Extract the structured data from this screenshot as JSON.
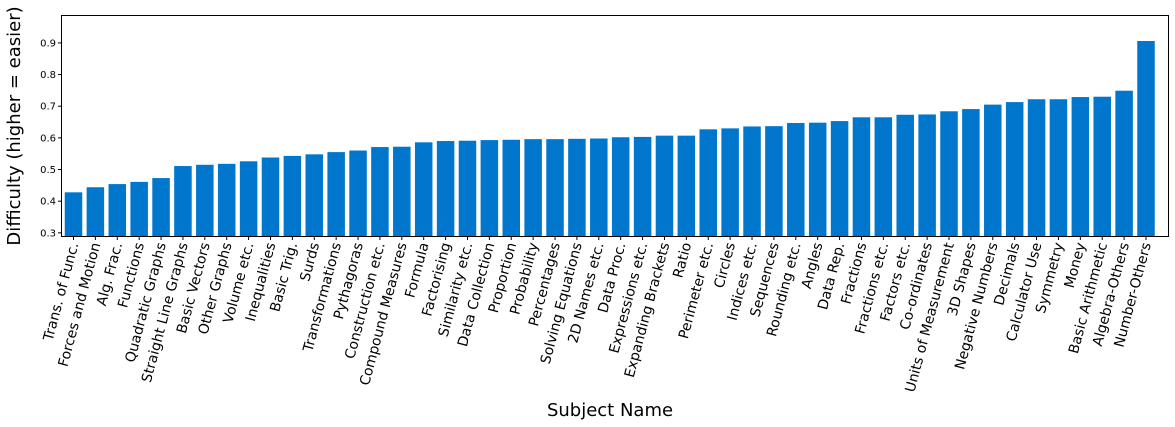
{
  "chart_data": {
    "type": "bar",
    "xlabel": "Subject Name",
    "ylabel": "Difficulty (higher = easier)",
    "ylim": [
      0.29,
      0.985
    ],
    "yticks": [
      "0.3",
      "0.4",
      "0.5",
      "0.6",
      "0.7",
      "0.8",
      "0.9"
    ],
    "grid": false,
    "bar_color": "#0077cc",
    "categories": [
      "Trans. of Func.",
      "Forces and Motion",
      "Alg. Frac.",
      "Functions",
      "Quadratic Graphs",
      "Straight Line Graphs",
      "Basic Vectors",
      "Other Graphs",
      "Volume etc.",
      "Inequalities",
      "Basic Trig.",
      "Surds",
      "Transformations",
      "Pythagoras",
      "Construction etc.",
      "Compound Measures",
      "Formula",
      "Factorising",
      "Similarity etc.",
      "Data Collection",
      "Proportion",
      "Probability",
      "Percentages",
      "Solving Equations",
      "2D Names etc.",
      "Data Proc.",
      "Expressions etc.",
      "Expanding Brackets",
      "Ratio",
      "Perimeter etc.",
      "Circles",
      "Indices etc.",
      "Sequences",
      "Rounding etc.",
      "Angles",
      "Data Rep.",
      "Fractions",
      "Fractions etc.",
      "Factors etc.",
      "Co-ordinates",
      "Units of Measurement",
      "3D Shapes",
      "Negative Numbers",
      "Decimals",
      "Calculator Use",
      "Symmetry",
      "Money",
      "Basic Arithmetic",
      "Algebra-Others",
      "Number-Others"
    ],
    "values": [
      0.428,
      0.444,
      0.454,
      0.461,
      0.473,
      0.511,
      0.515,
      0.518,
      0.526,
      0.538,
      0.543,
      0.548,
      0.555,
      0.56,
      0.571,
      0.572,
      0.586,
      0.59,
      0.591,
      0.593,
      0.594,
      0.596,
      0.596,
      0.597,
      0.598,
      0.602,
      0.603,
      0.607,
      0.607,
      0.627,
      0.63,
      0.636,
      0.637,
      0.647,
      0.648,
      0.653,
      0.665,
      0.665,
      0.673,
      0.674,
      0.684,
      0.691,
      0.705,
      0.713,
      0.722,
      0.722,
      0.729,
      0.73,
      0.749,
      0.906
    ]
  }
}
